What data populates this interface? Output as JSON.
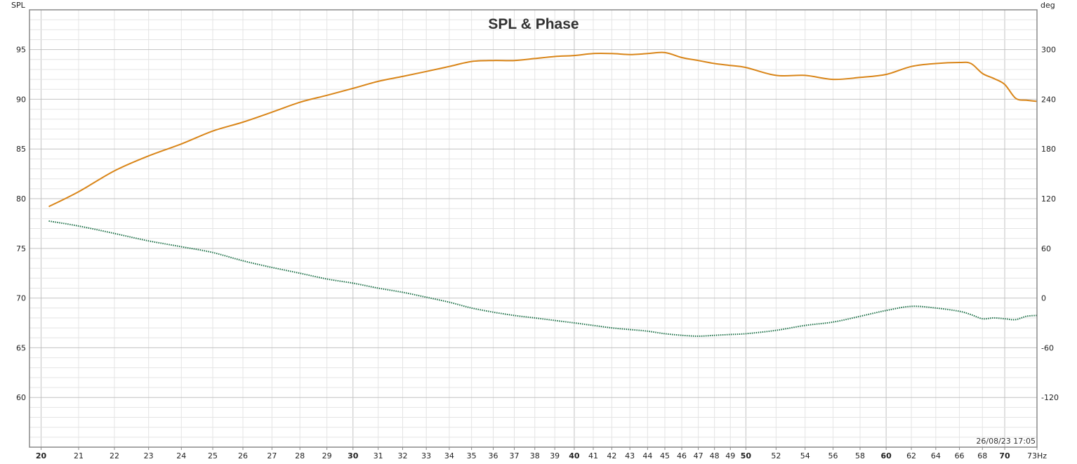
{
  "chart_data": {
    "type": "line",
    "title": "SPL & Phase",
    "ylabel_left": "SPL",
    "ylabel_right": "deg",
    "x_unit": "Hz",
    "timestamp": "26/08/23 17:05",
    "x_scale": "log",
    "xlim": [
      19.7,
      73.0
    ],
    "ylim_left": [
      55.0,
      99.0
    ],
    "ylim_right": [
      -180,
      348
    ],
    "grid": true,
    "x_ticks": [
      {
        "v": 20,
        "label": "20",
        "major": true
      },
      {
        "v": 21,
        "label": "21",
        "major": false
      },
      {
        "v": 22,
        "label": "22",
        "major": false
      },
      {
        "v": 23,
        "label": "23",
        "major": false
      },
      {
        "v": 24,
        "label": "24",
        "major": false
      },
      {
        "v": 25,
        "label": "25",
        "major": false
      },
      {
        "v": 26,
        "label": "26",
        "major": false
      },
      {
        "v": 27,
        "label": "27",
        "major": false
      },
      {
        "v": 28,
        "label": "28",
        "major": false
      },
      {
        "v": 29,
        "label": "29",
        "major": false
      },
      {
        "v": 30,
        "label": "30",
        "major": true
      },
      {
        "v": 31,
        "label": "31",
        "major": false
      },
      {
        "v": 32,
        "label": "32",
        "major": false
      },
      {
        "v": 33,
        "label": "33",
        "major": false
      },
      {
        "v": 34,
        "label": "34",
        "major": false
      },
      {
        "v": 35,
        "label": "35",
        "major": false
      },
      {
        "v": 36,
        "label": "36",
        "major": false
      },
      {
        "v": 37,
        "label": "37",
        "major": false
      },
      {
        "v": 38,
        "label": "38",
        "major": false
      },
      {
        "v": 39,
        "label": "39",
        "major": false
      },
      {
        "v": 40,
        "label": "40",
        "major": true
      },
      {
        "v": 41,
        "label": "41",
        "major": false
      },
      {
        "v": 42,
        "label": "42",
        "major": false
      },
      {
        "v": 43,
        "label": "43",
        "major": false
      },
      {
        "v": 44,
        "label": "44",
        "major": false
      },
      {
        "v": 45,
        "label": "45",
        "major": false
      },
      {
        "v": 46,
        "label": "46",
        "major": false
      },
      {
        "v": 47,
        "label": "47",
        "major": false
      },
      {
        "v": 48,
        "label": "48",
        "major": false
      },
      {
        "v": 49,
        "label": "49",
        "major": false
      },
      {
        "v": 50,
        "label": "50",
        "major": true
      },
      {
        "v": 52,
        "label": "52",
        "major": false
      },
      {
        "v": 54,
        "label": "54",
        "major": false
      },
      {
        "v": 56,
        "label": "56",
        "major": false
      },
      {
        "v": 58,
        "label": "58",
        "major": false
      },
      {
        "v": 60,
        "label": "60",
        "major": true
      },
      {
        "v": 62,
        "label": "62",
        "major": false
      },
      {
        "v": 64,
        "label": "64",
        "major": false
      },
      {
        "v": 66,
        "label": "66",
        "major": false
      },
      {
        "v": 68,
        "label": "68",
        "major": false
      },
      {
        "v": 70,
        "label": "70",
        "major": true
      },
      {
        "v": 73,
        "label": "73Hz",
        "major": false
      }
    ],
    "y_ticks_left": [
      60,
      65,
      70,
      75,
      80,
      85,
      90,
      95
    ],
    "y_ticks_right": [
      -120,
      -60,
      0,
      60,
      120,
      180,
      240,
      300
    ],
    "colors": {
      "spl": "#d98518",
      "phase": "#1a6e45",
      "grid_minor": "#e4e4e4",
      "grid_major": "#c2c2c2",
      "frame": "#8a8a8a"
    },
    "series": [
      {
        "key": "spl",
        "axis": "left",
        "style": "solid",
        "x": [
          20.2,
          21,
          22,
          23,
          24,
          25,
          26,
          27,
          28,
          29,
          30,
          31,
          32,
          33,
          34,
          35,
          36,
          37,
          38,
          39,
          40,
          41,
          42,
          43,
          44,
          45,
          46,
          47,
          48,
          49,
          50,
          52,
          54,
          56,
          58,
          60,
          62,
          64,
          66,
          67,
          68,
          69,
          70,
          71,
          72,
          73
        ],
        "y": [
          79.2,
          80.7,
          82.8,
          84.3,
          85.5,
          86.8,
          87.7,
          88.7,
          89.7,
          90.4,
          91.1,
          91.8,
          92.3,
          92.8,
          93.3,
          93.8,
          93.9,
          93.9,
          94.1,
          94.3,
          94.4,
          94.6,
          94.6,
          94.5,
          94.6,
          94.7,
          94.2,
          93.9,
          93.6,
          93.4,
          93.2,
          92.4,
          92.4,
          92.0,
          92.2,
          92.5,
          93.3,
          93.6,
          93.7,
          93.6,
          92.6,
          92.1,
          91.5,
          90.1,
          89.9,
          89.8
        ]
      },
      {
        "key": "phase",
        "axis": "right",
        "style": "dotted",
        "x": [
          20.2,
          21,
          22,
          23,
          24,
          25,
          26,
          27,
          28,
          29,
          30,
          31,
          32,
          33,
          34,
          35,
          36,
          37,
          38,
          39,
          40,
          41,
          42,
          43,
          44,
          45,
          46,
          47,
          48,
          49,
          50,
          52,
          54,
          56,
          58,
          60,
          62,
          64,
          66,
          67,
          68,
          69,
          70,
          71,
          72,
          73
        ],
        "y": [
          93,
          87,
          78,
          69,
          62,
          55,
          45,
          37,
          30,
          23,
          18,
          12,
          7,
          1,
          -5,
          -12,
          -17,
          -21,
          -24,
          -27,
          -30,
          -33,
          -36,
          -38,
          -40,
          -43,
          -45,
          -46,
          -45,
          -44,
          -43,
          -39,
          -33,
          -29,
          -22,
          -15,
          -10,
          -12,
          -16,
          -20,
          -25,
          -24,
          -25,
          -26,
          -22,
          -21
        ]
      }
    ]
  }
}
